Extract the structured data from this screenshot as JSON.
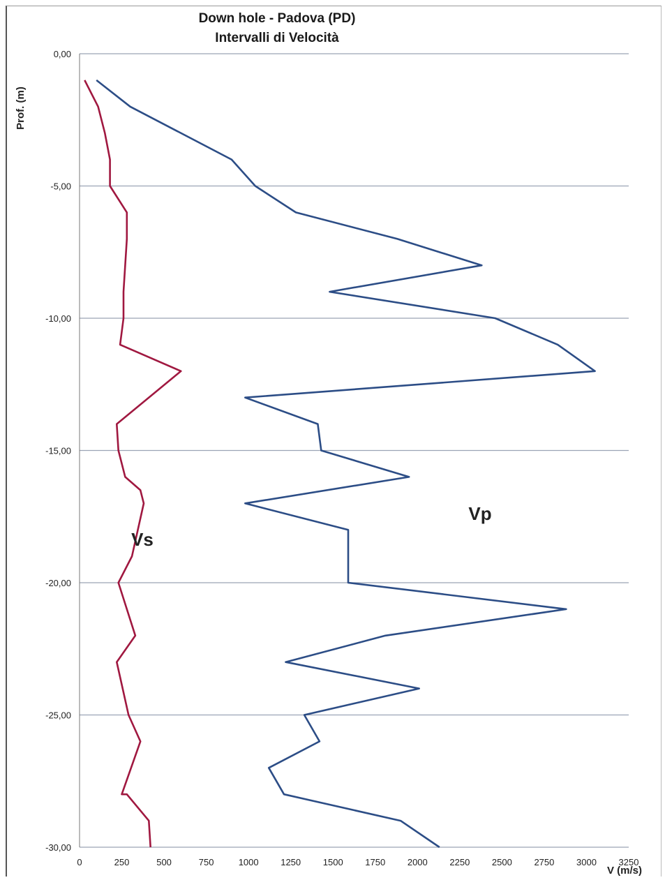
{
  "chart_data": {
    "type": "line",
    "title": "Down hole - Padova (PD)",
    "subtitle": "Intervalli di Velocità",
    "xlabel": "V (m/s)",
    "ylabel": "Prof. (m)",
    "xlim": [
      0,
      3250
    ],
    "ylim": [
      -30,
      0
    ],
    "xticks": [
      "0",
      "250",
      "500",
      "750",
      "1000",
      "1250",
      "1500",
      "1750",
      "2000",
      "2250",
      "2500",
      "2750",
      "3000",
      "3250"
    ],
    "yticks": [
      "0,00",
      "-5,00",
      "-10,00",
      "-15,00",
      "-20,00",
      "-25,00",
      "-30,00"
    ],
    "grid": "horizontal",
    "colors": {
      "Vs": "#a01840",
      "Vp": "#2c4d86",
      "grid": "#9aa3b5"
    },
    "series": [
      {
        "name": "Vp",
        "x": [
          100,
          300,
          900,
          1040,
          1280,
          1880,
          2380,
          1480,
          2460,
          2830,
          3050,
          980,
          1410,
          1430,
          1950,
          980,
          1590,
          1590,
          2880,
          1810,
          1220,
          2010,
          1330,
          1420,
          1120,
          1210,
          1900,
          2130
        ],
        "y": [
          -1,
          -2,
          -4,
          -5,
          -6,
          -7,
          -8,
          -9,
          -10,
          -11,
          -12,
          -13,
          -14,
          -15,
          -16,
          -17,
          -18,
          -20,
          -21,
          -22,
          -23,
          -24,
          -25,
          -26,
          -27,
          -28,
          -29,
          -30
        ]
      },
      {
        "name": "Vs",
        "x": [
          30,
          110,
          150,
          180,
          180,
          280,
          280,
          270,
          260,
          260,
          240,
          600,
          220,
          230,
          270,
          360,
          380,
          310,
          230,
          330,
          220,
          290,
          360,
          250,
          280,
          410,
          420
        ],
        "y": [
          -1,
          -2,
          -3,
          -4,
          -5,
          -6,
          -7,
          -8,
          -9,
          -10,
          -11,
          -12,
          -14,
          -15,
          -16,
          -16.5,
          -17,
          -19,
          -20,
          -22,
          -23,
          -25,
          -26,
          -28,
          -28,
          -29,
          -30
        ]
      }
    ]
  }
}
